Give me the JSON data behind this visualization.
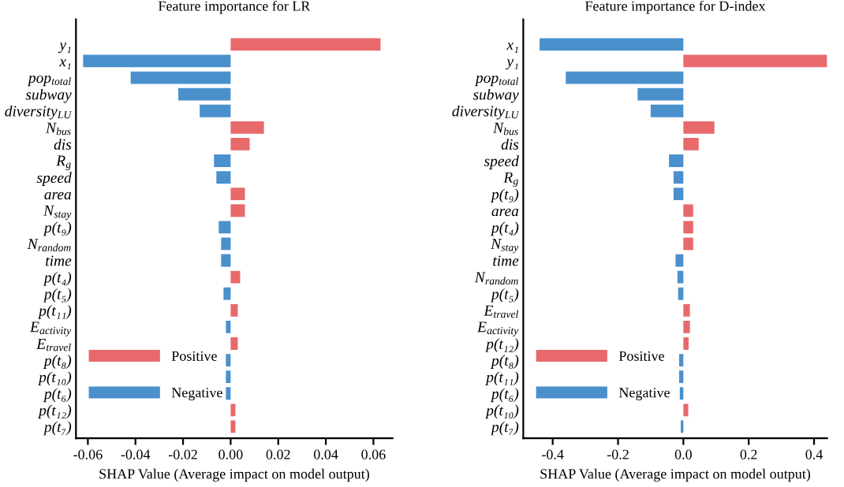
{
  "chart_data": [
    {
      "type": "bar",
      "orientation": "horizontal",
      "title": "Feature importance for LR",
      "xlabel": "SHAP Value (Average impact on model output)",
      "categories": [
        "y₁",
        "x₁",
        "pop$_{total}$",
        "subway",
        "diversity$_{LU}$",
        "N$_{bus}$",
        "dis",
        "R$_{g}$",
        "speed",
        "area",
        "N$_{stay}$",
        "p(t₉)",
        "N$_{random}$",
        "time",
        "p(t₄)",
        "p(t₅)",
        "p(t₁₁)",
        "E$_{activity}$",
        "E$_{travel}$",
        "p(t₈)",
        "p(t₁₀)",
        "p(t₆)",
        "p(t₁₂)",
        "p(t₇)"
      ],
      "series": [
        {
          "name": "Positive",
          "color": "#e8696b",
          "values": [
            0.063,
            null,
            null,
            null,
            null,
            0.014,
            0.008,
            null,
            null,
            0.006,
            0.006,
            null,
            null,
            null,
            0.004,
            null,
            0.003,
            null,
            0.003,
            null,
            null,
            null,
            0.002,
            0.002
          ]
        },
        {
          "name": "Negative",
          "color": "#4a90cc",
          "values": [
            null,
            -0.062,
            -0.042,
            -0.022,
            -0.013,
            null,
            null,
            -0.007,
            -0.006,
            null,
            null,
            -0.005,
            -0.004,
            -0.004,
            null,
            -0.003,
            null,
            -0.002,
            null,
            -0.002,
            -0.002,
            -0.002,
            null,
            null
          ]
        }
      ],
      "xlim": [
        -0.065,
        0.068
      ],
      "xticks": [
        -0.06,
        -0.04,
        -0.02,
        {
          "value": 0,
          "label": "0.00"
        },
        0.02,
        0.04,
        0.06
      ],
      "legend": "bottom left",
      "grid": false
    },
    {
      "type": "bar",
      "orientation": "horizontal",
      "title": "Feature importance for D-index",
      "xlabel": "SHAP Value (Average impact on model output)",
      "categories": [
        "x₁",
        "y₁",
        "pop$_{total}$",
        "subway",
        "diversity$_{LU}$",
        "N$_{bus}$",
        "dis",
        "speed",
        "R$_{g}$",
        "p(t₉)",
        "area",
        "p(t₄)",
        "N$_{stay}$",
        "time",
        "N$_{random}$",
        "p(t₅)",
        "E$_{travel}$",
        "E$_{activity}$",
        "p(t₁₂)",
        "p(t₈)",
        "p(t₁₁)",
        "p(t₆)",
        "p(t₁₀)",
        "p(t₇)"
      ],
      "series": [
        {
          "name": "Positive",
          "color": "#e8696b",
          "values": [
            null,
            0.44,
            null,
            null,
            null,
            0.095,
            0.047,
            null,
            null,
            null,
            0.03,
            0.03,
            0.03,
            null,
            null,
            null,
            0.02,
            0.02,
            0.016,
            null,
            null,
            null,
            0.015,
            null
          ]
        },
        {
          "name": "Negative",
          "color": "#4a90cc",
          "values": [
            -0.44,
            null,
            -0.36,
            -0.14,
            -0.1,
            null,
            null,
            -0.044,
            -0.03,
            -0.03,
            null,
            null,
            null,
            -0.024,
            -0.018,
            -0.016,
            null,
            null,
            null,
            -0.013,
            -0.013,
            -0.011,
            null,
            -0.008
          ]
        }
      ],
      "xlim": [
        -0.49,
        0.44
      ],
      "xticks": [
        -0.4,
        -0.2,
        {
          "value": 0,
          "label": "0.0"
        },
        0.2,
        0.4
      ],
      "legend": "bottom left",
      "grid": false
    }
  ]
}
